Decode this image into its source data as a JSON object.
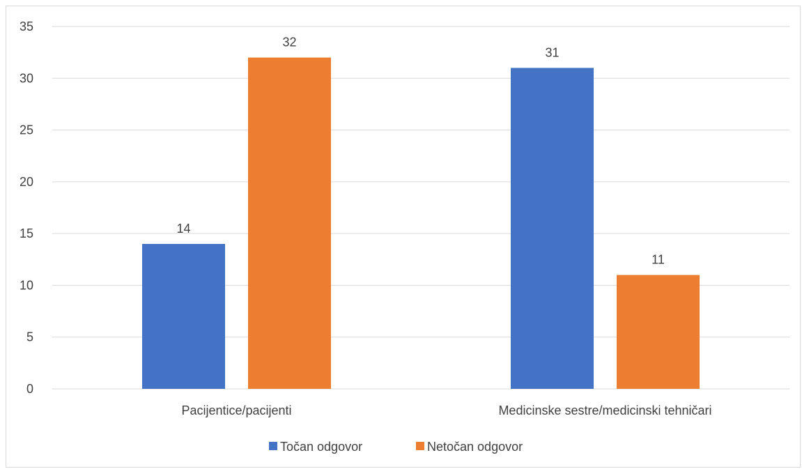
{
  "chart_data": {
    "type": "bar",
    "title": "",
    "xlabel": "",
    "ylabel": "",
    "categories": [
      "Pacijentice/pacijenti",
      "Medicinske sestre/medicinski tehničari"
    ],
    "series": [
      {
        "name": "Točan odgovor",
        "values": [
          14,
          31
        ],
        "color": "#4472C4"
      },
      {
        "name": "Netočan odgovor",
        "values": [
          32,
          11
        ],
        "color": "#ED7D31"
      }
    ],
    "ylim": [
      0,
      35
    ],
    "yticks": [
      0,
      5,
      10,
      15,
      20,
      25,
      30,
      35
    ],
    "grid": true,
    "legend_position": "bottom",
    "data_labels": true,
    "colors": {
      "gridline": "#d9d9d9",
      "text": "#404040",
      "frame": "#d9d9d9"
    }
  }
}
